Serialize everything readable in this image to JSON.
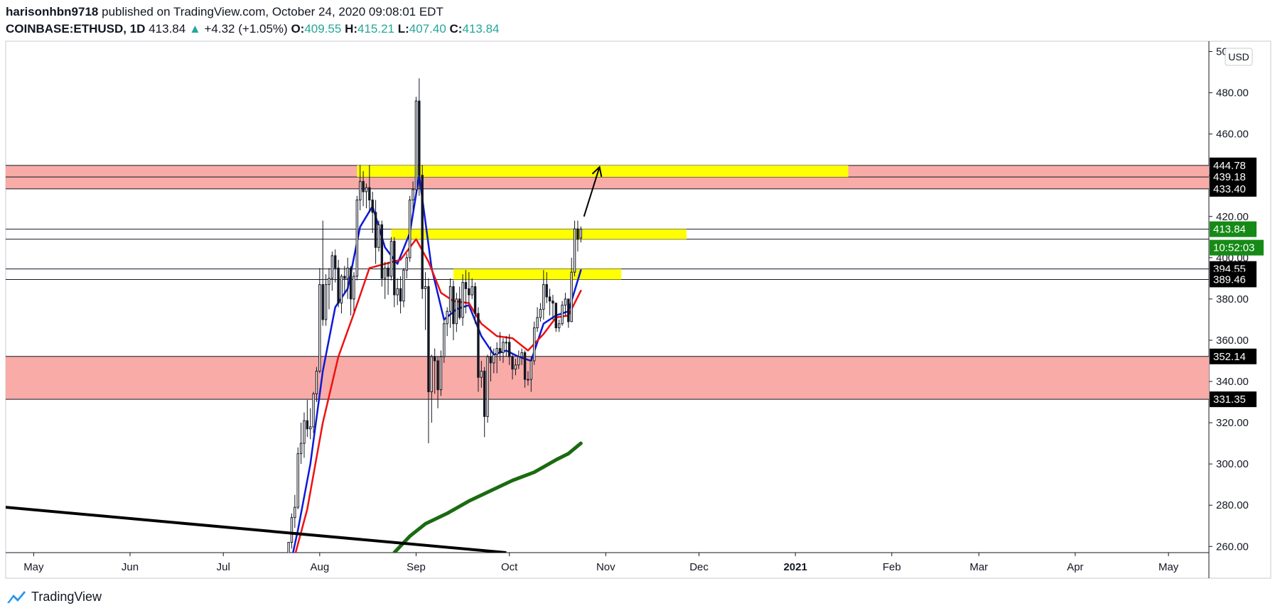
{
  "header": {
    "author": "harisonhbn9718",
    "published_text": "published on TradingView.com, October 24, 2020 09:08:01 EDT",
    "symbol": "COINBASE:ETHUSD, 1D",
    "last": "413.84",
    "change_arrow": "▲",
    "change": "+4.32 (+1.05%)",
    "open_label": "O:",
    "open": "409.55",
    "high_label": "H:",
    "high": "415.21",
    "low_label": "L:",
    "low": "407.40",
    "close_label": "C:",
    "close": "413.84"
  },
  "footer": {
    "brand": "TradingView"
  },
  "colors": {
    "up": "#26a69a",
    "zone_red": "#f8aba7",
    "zone_yellow": "#ffff00",
    "ma_fast": "#0b1ad8",
    "ma_mid": "#ee1111",
    "ma_slow": "#1a6b10",
    "candle": "#131722",
    "tag_black": "#000000",
    "tag_green": "#168a16"
  },
  "chart_data": {
    "type": "candlestick",
    "symbol": "COINBASE:ETHUSD",
    "interval": "1D",
    "currency_badge": "USD",
    "y_ticks": [
      "500.00",
      "480.00",
      "460.00",
      "440.00",
      "420.00",
      "400.00",
      "380.00",
      "360.00",
      "340.00",
      "320.00",
      "300.00",
      "280.00",
      "260.00"
    ],
    "ylim": [
      257,
      505
    ],
    "x_ticks": [
      "May",
      "Jun",
      "Jul",
      "Aug",
      "Sep",
      "Oct",
      "Nov",
      "Dec",
      "2021",
      "Feb",
      "Mar",
      "Apr",
      "May"
    ],
    "x_tick_dates": [
      "2020-05-01",
      "2020-06-01",
      "2020-07-01",
      "2020-08-01",
      "2020-09-01",
      "2020-10-01",
      "2020-11-01",
      "2020-12-01",
      "2021-01-01",
      "2021-02-01",
      "2021-03-01",
      "2021-04-01",
      "2021-05-01"
    ],
    "xlim": [
      "2020-04-22",
      "2021-05-14"
    ],
    "price_tags": [
      {
        "value": 444.78,
        "label": "444.78",
        "color": "black"
      },
      {
        "value": 439.18,
        "label": "439.18",
        "color": "black"
      },
      {
        "value": 433.4,
        "label": "433.40",
        "color": "black"
      },
      {
        "value": 413.84,
        "label": "413.84",
        "color": "green"
      },
      {
        "value": 394.55,
        "label": "394.55",
        "color": "black"
      },
      {
        "value": 389.46,
        "label": "389.46",
        "color": "black"
      },
      {
        "value": 352.14,
        "label": "352.14",
        "color": "black"
      },
      {
        "value": 331.35,
        "label": "331.35",
        "color": "black"
      }
    ],
    "countdown": "10:52:03",
    "horizontal_lines": [
      444.78,
      439.18,
      433.4,
      413.84,
      409.0,
      394.55,
      389.46,
      352.14,
      331.35
    ],
    "zones": [
      {
        "kind": "red",
        "from": "2020-04-22",
        "to": "2021-05-14",
        "low": 433.4,
        "high": 444.78
      },
      {
        "kind": "red",
        "from": "2020-04-22",
        "to": "2021-05-14",
        "low": 331.35,
        "high": 352.14
      },
      {
        "kind": "yellow",
        "from": "2020-08-13",
        "to": "2021-01-18",
        "low": 439.18,
        "high": 444.78
      },
      {
        "kind": "yellow",
        "from": "2020-08-24",
        "to": "2020-11-27",
        "low": 409.0,
        "high": 413.84
      },
      {
        "kind": "yellow",
        "from": "2020-09-13",
        "to": "2020-11-06",
        "low": 389.46,
        "high": 394.55
      }
    ],
    "trendline": {
      "from": [
        "2020-04-22",
        279
      ],
      "to": [
        "2020-09-30",
        257
      ]
    },
    "arrow": {
      "from": [
        "2020-10-25",
        420
      ],
      "to": [
        "2020-10-30",
        444
      ]
    },
    "candles": [
      [
        "2020-07-21",
        245,
        251,
        240,
        250
      ],
      [
        "2020-07-22",
        250,
        262,
        249,
        262
      ],
      [
        "2020-07-23",
        262,
        276,
        259,
        274
      ],
      [
        "2020-07-24",
        274,
        285,
        269,
        279
      ],
      [
        "2020-07-25",
        279,
        308,
        278,
        305
      ],
      [
        "2020-07-26",
        305,
        320,
        300,
        310
      ],
      [
        "2020-07-27",
        310,
        325,
        303,
        321
      ],
      [
        "2020-07-28",
        321,
        331,
        313,
        317
      ],
      [
        "2020-07-29",
        317,
        327,
        312,
        318
      ],
      [
        "2020-07-30",
        318,
        335,
        315,
        334
      ],
      [
        "2020-07-31",
        334,
        347,
        330,
        345
      ],
      [
        "2020-08-01",
        345,
        395,
        344,
        387
      ],
      [
        "2020-08-02",
        387,
        418,
        367,
        370
      ],
      [
        "2020-08-03",
        370,
        392,
        367,
        387
      ],
      [
        "2020-08-04",
        387,
        395,
        375,
        390
      ],
      [
        "2020-08-05",
        390,
        403,
        384,
        401
      ],
      [
        "2020-08-06",
        401,
        404,
        388,
        395
      ],
      [
        "2020-08-07",
        395,
        399,
        376,
        378
      ],
      [
        "2020-08-08",
        378,
        392,
        373,
        391
      ],
      [
        "2020-08-09",
        391,
        396,
        383,
        390
      ],
      [
        "2020-08-10",
        390,
        400,
        380,
        395
      ],
      [
        "2020-08-11",
        395,
        396,
        372,
        380
      ],
      [
        "2020-08-12",
        380,
        393,
        374,
        391
      ],
      [
        "2020-08-13",
        391,
        430,
        389,
        428
      ],
      [
        "2020-08-14",
        428,
        445,
        423,
        437
      ],
      [
        "2020-08-15",
        437,
        442,
        425,
        432
      ],
      [
        "2020-08-16",
        432,
        436,
        424,
        434
      ],
      [
        "2020-08-17",
        434,
        445,
        422,
        428
      ],
      [
        "2020-08-18",
        428,
        432,
        412,
        422
      ],
      [
        "2020-08-19",
        422,
        428,
        397,
        405
      ],
      [
        "2020-08-20",
        405,
        418,
        403,
        416
      ],
      [
        "2020-08-21",
        416,
        418,
        386,
        390
      ],
      [
        "2020-08-22",
        390,
        398,
        380,
        395
      ],
      [
        "2020-08-23",
        395,
        398,
        382,
        391
      ],
      [
        "2020-08-24",
        391,
        410,
        389,
        408
      ],
      [
        "2020-08-25",
        408,
        410,
        376,
        382
      ],
      [
        "2020-08-26",
        382,
        390,
        377,
        385
      ],
      [
        "2020-08-27",
        385,
        391,
        373,
        379
      ],
      [
        "2020-08-28",
        379,
        395,
        376,
        394
      ],
      [
        "2020-08-29",
        394,
        402,
        390,
        400
      ],
      [
        "2020-08-30",
        400,
        430,
        398,
        428
      ],
      [
        "2020-08-31",
        428,
        437,
        423,
        433
      ],
      [
        "2020-09-01",
        433,
        478,
        431,
        476
      ],
      [
        "2020-09-02",
        476,
        487,
        430,
        440
      ],
      [
        "2020-09-03",
        440,
        445,
        380,
        385
      ],
      [
        "2020-09-04",
        385,
        393,
        365,
        386
      ],
      [
        "2020-09-05",
        386,
        390,
        310,
        335
      ],
      [
        "2020-09-06",
        335,
        353,
        320,
        352
      ],
      [
        "2020-09-07",
        352,
        356,
        334,
        350
      ],
      [
        "2020-09-08",
        350,
        352,
        327,
        336
      ],
      [
        "2020-09-09",
        336,
        355,
        333,
        352
      ],
      [
        "2020-09-10",
        352,
        370,
        349,
        368
      ],
      [
        "2020-09-11",
        368,
        376,
        362,
        374
      ],
      [
        "2020-09-12",
        374,
        390,
        366,
        386
      ],
      [
        "2020-09-13",
        386,
        389,
        360,
        368
      ],
      [
        "2020-09-14",
        368,
        383,
        364,
        380
      ],
      [
        "2020-09-15",
        380,
        386,
        370,
        371
      ],
      [
        "2020-09-16",
        371,
        392,
        367,
        388
      ],
      [
        "2020-09-17",
        388,
        394,
        373,
        385
      ],
      [
        "2020-09-18",
        385,
        393,
        378,
        382
      ],
      [
        "2020-09-19",
        382,
        390,
        380,
        386
      ],
      [
        "2020-09-20",
        386,
        388,
        368,
        373
      ],
      [
        "2020-09-21",
        373,
        376,
        335,
        342
      ],
      [
        "2020-09-22",
        342,
        350,
        337,
        345
      ],
      [
        "2020-09-23",
        345,
        347,
        313,
        323
      ],
      [
        "2020-09-24",
        323,
        353,
        320,
        352
      ],
      [
        "2020-09-25",
        352,
        357,
        340,
        349
      ],
      [
        "2020-09-26",
        349,
        356,
        344,
        353
      ],
      [
        "2020-09-27",
        353,
        359,
        344,
        356
      ],
      [
        "2020-09-28",
        356,
        364,
        350,
        354
      ],
      [
        "2020-09-29",
        354,
        361,
        349,
        359
      ],
      [
        "2020-09-30",
        359,
        362,
        352,
        359
      ],
      [
        "2020-10-01",
        359,
        363,
        348,
        352
      ],
      [
        "2020-10-02",
        352,
        353,
        341,
        346
      ],
      [
        "2020-10-03",
        346,
        351,
        343,
        348
      ],
      [
        "2020-10-04",
        348,
        355,
        346,
        352
      ],
      [
        "2020-10-05",
        352,
        356,
        348,
        354
      ],
      [
        "2020-10-06",
        354,
        355,
        337,
        341
      ],
      [
        "2020-10-07",
        341,
        345,
        338,
        341
      ],
      [
        "2020-10-08",
        341,
        352,
        335,
        350
      ],
      [
        "2020-10-09",
        350,
        369,
        348,
        366
      ],
      [
        "2020-10-10",
        366,
        376,
        364,
        371
      ],
      [
        "2020-10-11",
        371,
        378,
        369,
        375
      ],
      [
        "2020-10-12",
        375,
        394,
        370,
        387
      ],
      [
        "2020-10-13",
        387,
        393,
        378,
        381
      ],
      [
        "2020-10-14",
        381,
        385,
        372,
        379
      ],
      [
        "2020-10-15",
        379,
        382,
        370,
        378
      ],
      [
        "2020-10-16",
        378,
        378,
        364,
        366
      ],
      [
        "2020-10-17",
        366,
        370,
        364,
        368
      ],
      [
        "2020-10-18",
        368,
        379,
        367,
        377
      ],
      [
        "2020-10-19",
        377,
        383,
        372,
        380
      ],
      [
        "2020-10-20",
        380,
        380,
        366,
        369
      ],
      [
        "2020-10-21",
        369,
        400,
        369,
        393
      ],
      [
        "2020-10-22",
        393,
        418,
        391,
        414
      ],
      [
        "2020-10-23",
        414,
        418,
        403,
        409
      ],
      [
        "2020-10-24",
        409.55,
        415.21,
        407.4,
        413.84
      ]
    ],
    "ma_fast": [
      [
        "2020-07-21",
        240
      ],
      [
        "2020-07-25",
        268
      ],
      [
        "2020-07-29",
        300
      ],
      [
        "2020-08-02",
        345
      ],
      [
        "2020-08-06",
        376
      ],
      [
        "2020-08-10",
        385
      ],
      [
        "2020-08-14",
        415
      ],
      [
        "2020-08-18",
        425
      ],
      [
        "2020-08-22",
        405
      ],
      [
        "2020-08-26",
        397
      ],
      [
        "2020-08-30",
        412
      ],
      [
        "2020-09-02",
        440
      ],
      [
        "2020-09-06",
        395
      ],
      [
        "2020-09-10",
        370
      ],
      [
        "2020-09-14",
        375
      ],
      [
        "2020-09-18",
        377
      ],
      [
        "2020-09-22",
        362
      ],
      [
        "2020-09-26",
        353
      ],
      [
        "2020-09-30",
        355
      ],
      [
        "2020-10-04",
        352
      ],
      [
        "2020-10-08",
        350
      ],
      [
        "2020-10-12",
        368
      ],
      [
        "2020-10-16",
        372
      ],
      [
        "2020-10-20",
        374
      ],
      [
        "2020-10-24",
        394
      ]
    ],
    "ma_mid": [
      [
        "2020-07-23",
        250
      ],
      [
        "2020-07-28",
        278
      ],
      [
        "2020-08-02",
        320
      ],
      [
        "2020-08-07",
        352
      ],
      [
        "2020-08-12",
        373
      ],
      [
        "2020-08-17",
        395
      ],
      [
        "2020-08-22",
        397
      ],
      [
        "2020-08-27",
        399
      ],
      [
        "2020-09-01",
        409
      ],
      [
        "2020-09-05",
        398
      ],
      [
        "2020-09-09",
        383
      ],
      [
        "2020-09-13",
        379
      ],
      [
        "2020-09-18",
        378
      ],
      [
        "2020-09-22",
        368
      ],
      [
        "2020-09-27",
        362
      ],
      [
        "2020-10-02",
        361
      ],
      [
        "2020-10-07",
        355
      ],
      [
        "2020-10-12",
        363
      ],
      [
        "2020-10-16",
        371
      ],
      [
        "2020-10-20",
        372
      ],
      [
        "2020-10-24",
        384
      ]
    ],
    "ma_slow": [
      [
        "2020-08-25",
        257
      ],
      [
        "2020-08-30",
        265
      ],
      [
        "2020-09-04",
        271
      ],
      [
        "2020-09-11",
        276
      ],
      [
        "2020-09-18",
        282
      ],
      [
        "2020-09-25",
        287
      ],
      [
        "2020-10-02",
        292
      ],
      [
        "2020-10-09",
        296
      ],
      [
        "2020-10-16",
        302
      ],
      [
        "2020-10-20",
        305
      ],
      [
        "2020-10-24",
        310
      ]
    ]
  }
}
